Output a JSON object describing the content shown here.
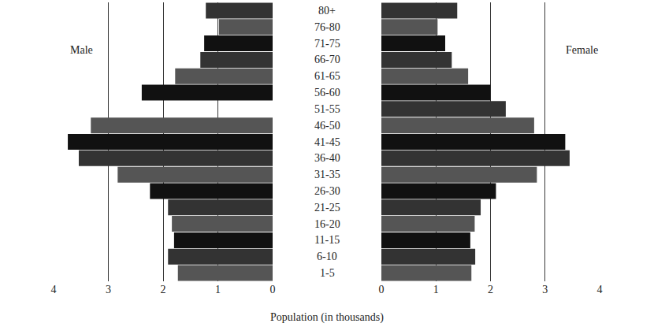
{
  "chart_data": {
    "type": "bar",
    "orientation": "horizontal",
    "xlabel": "Population (in thousands)",
    "categories": [
      "1-5",
      "6-10",
      "11-15",
      "16-20",
      "21-25",
      "26-30",
      "31-35",
      "36-40",
      "41-45",
      "46-50",
      "51-55",
      "56-60",
      "61-65",
      "66-70",
      "71-75",
      "76-80",
      "80+"
    ],
    "series": [
      {
        "name": "Male",
        "values": [
          1.73,
          1.91,
          1.8,
          1.84,
          1.91,
          2.24,
          2.83,
          3.54,
          3.74,
          3.32,
          0,
          2.39,
          1.78,
          1.32,
          1.25,
          0.98,
          1.22
        ],
        "colors": [
          "#555555",
          "#333333",
          "#111111",
          "#555555",
          "#333333",
          "#111111",
          "#555555",
          "#333333",
          "#111111",
          "#555555",
          "#333333",
          "#111111",
          "#555555",
          "#333333",
          "#111111",
          "#555555",
          "#333333"
        ]
      },
      {
        "name": "Female",
        "values": [
          1.65,
          1.72,
          1.63,
          1.71,
          1.82,
          2.1,
          2.85,
          3.45,
          3.37,
          2.8,
          2.28,
          2.0,
          1.59,
          1.29,
          1.17,
          1.03,
          1.39
        ],
        "colors": [
          "#555555",
          "#333333",
          "#111111",
          "#555555",
          "#333333",
          "#111111",
          "#555555",
          "#333333",
          "#111111",
          "#555555",
          "#333333",
          "#111111",
          "#555555",
          "#333333",
          "#111111",
          "#555555",
          "#333333"
        ]
      }
    ],
    "xlim": [
      0,
      4
    ],
    "xticks": [
      0,
      1,
      2,
      3,
      4
    ],
    "grid": true,
    "legend": false,
    "tick_labels": "x"
  }
}
